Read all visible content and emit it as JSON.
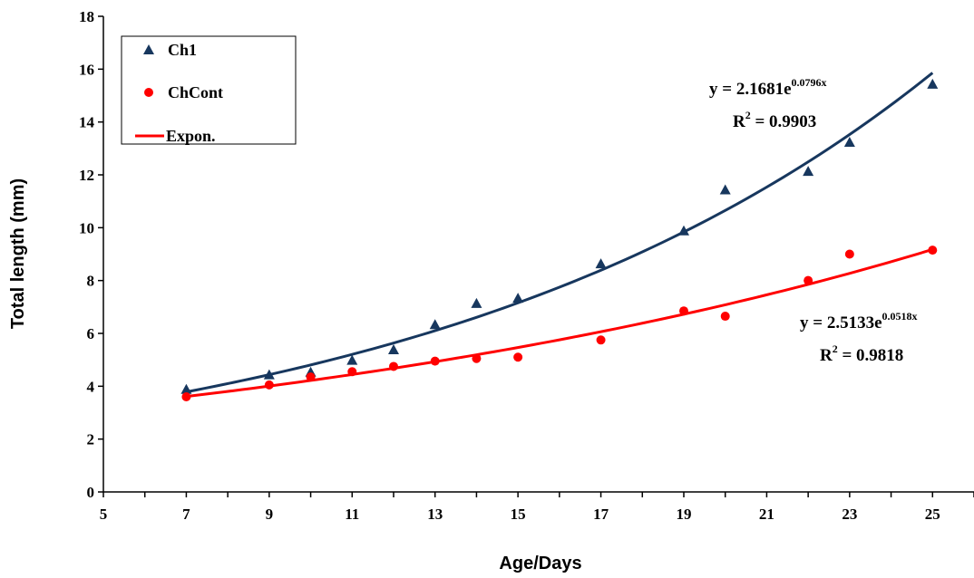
{
  "chart_data": {
    "type": "scatter",
    "xlabel": "Age/Days",
    "ylabel": "Total length (mm)",
    "xlim": [
      5,
      26
    ],
    "ylim": [
      0,
      18
    ],
    "xticks": [
      "5",
      "7",
      "9",
      "11",
      "13",
      "15",
      "17",
      "19",
      "21",
      "23",
      "25"
    ],
    "yticks": [
      "0",
      "2",
      "4",
      "6",
      "8",
      "10",
      "12",
      "14",
      "16",
      "18"
    ],
    "series": [
      {
        "name": "Ch1",
        "marker": "triangle",
        "color": "#17375e",
        "x": [
          7,
          9,
          10,
          11,
          12,
          13,
          14,
          15,
          17,
          19,
          20,
          22,
          23,
          25
        ],
        "y": [
          3.85,
          4.4,
          4.5,
          4.95,
          5.35,
          6.3,
          7.1,
          7.3,
          8.6,
          9.85,
          11.4,
          12.1,
          13.2,
          15.4
        ],
        "trend": {
          "a": 2.1681,
          "b": 0.0796,
          "eq_main": "y = 2.1681e",
          "eq_exp": "0.0796x",
          "r2_prefix": "R",
          "r2_sup": "2",
          "r2_rest": " = 0.9903"
        }
      },
      {
        "name": "ChCont",
        "marker": "circle",
        "color": "#ff0000",
        "x": [
          7,
          9,
          10,
          11,
          12,
          13,
          14,
          15,
          17,
          19,
          20,
          22,
          23,
          25
        ],
        "y": [
          3.6,
          4.05,
          4.35,
          4.55,
          4.75,
          4.95,
          5.05,
          5.1,
          5.75,
          6.85,
          6.65,
          8.0,
          9.0,
          9.15
        ],
        "trend": {
          "a": 2.5133,
          "b": 0.0518,
          "eq_main": "y = 2.5133e",
          "eq_exp": "0.0518x",
          "r2_prefix": "R",
          "r2_sup": "2",
          "r2_rest": " = 0.9818"
        }
      }
    ],
    "legend": {
      "position": "top-left",
      "entries": [
        "Ch1",
        "ChCont",
        "Expon."
      ],
      "expon_color": "#ff0000"
    },
    "grid": false
  }
}
